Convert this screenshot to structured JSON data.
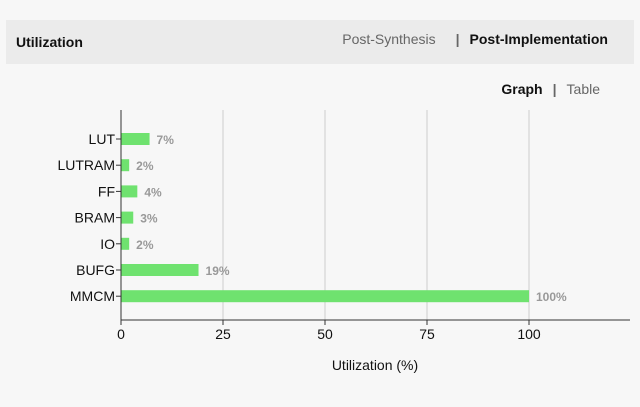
{
  "header": {
    "title": "Utilization",
    "tabs": [
      {
        "label": "Post-Synthesis",
        "active": false
      },
      {
        "label": "Post-Implementation",
        "active": true
      }
    ],
    "separator": "|"
  },
  "view_tabs": {
    "items": [
      {
        "label": "Graph",
        "active": true
      },
      {
        "label": "Table",
        "active": false
      }
    ],
    "separator": "|"
  },
  "colors": {
    "bar": "#6fe26f",
    "grid": "#cccccc",
    "axis": "#333333",
    "value_label": "#999999"
  },
  "chart_data": {
    "type": "bar",
    "orientation": "horizontal",
    "categories": [
      "LUT",
      "LUTRAM",
      "FF",
      "BRAM",
      "IO",
      "BUFG",
      "MMCM"
    ],
    "values": [
      7,
      2,
      4,
      3,
      2,
      19,
      100
    ],
    "value_labels": [
      "7%",
      "2%",
      "4%",
      "3%",
      "2%",
      "19%",
      "100%"
    ],
    "xlabel": "Utilization (%)",
    "ylabel": "",
    "xlim": [
      0,
      125
    ],
    "xticks": [
      0,
      25,
      50,
      75,
      100
    ],
    "grid": true
  }
}
